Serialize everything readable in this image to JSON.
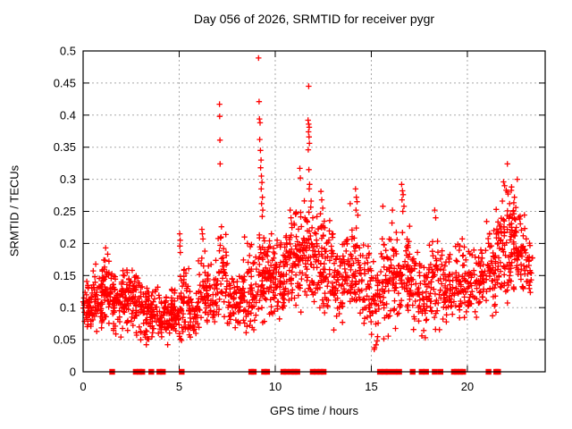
{
  "chart_data": {
    "type": "scatter",
    "title": "Day 056 of 2026, SRMTID for receiver pygr",
    "xlabel": "GPS time / hours",
    "ylabel": "SRMTID / TECUs",
    "xlim": [
      0,
      24.05
    ],
    "ylim": [
      0,
      0.5
    ],
    "xticks": [
      0,
      5,
      10,
      15,
      20
    ],
    "xtick_labels": [
      "0",
      "5",
      "10",
      "15",
      "20"
    ],
    "yticks": [
      0,
      0.05,
      0.1,
      0.15,
      0.2,
      0.25,
      0.3,
      0.35,
      0.4,
      0.45,
      0.5
    ],
    "ytick_labels": [
      "0",
      "0.05",
      "0.1",
      "0.15",
      "0.2",
      "0.25",
      "0.3",
      "0.35",
      "0.4",
      "0.45",
      "0.5"
    ],
    "grid": "dashed-major-both-axes",
    "legend": "none",
    "marker": "plus",
    "gap_marker": "filled-square",
    "colors": {
      "points": "#ff0000",
      "grid": "#a8a8a8",
      "axis": "#000000",
      "background": "#ffffff"
    },
    "seed": 20260056,
    "band_segments_comment": "dense scatter band; each row = [hourStart, hourEnd, count, yMin, yMax] in TECUs, triangular density toward middle",
    "band_segments": [
      [
        0.0,
        0.5,
        55,
        0.06,
        0.145
      ],
      [
        0.5,
        1.0,
        50,
        0.05,
        0.175
      ],
      [
        1.0,
        1.5,
        55,
        0.06,
        0.195
      ],
      [
        1.5,
        2.0,
        50,
        0.05,
        0.165
      ],
      [
        2.0,
        2.5,
        55,
        0.06,
        0.18
      ],
      [
        2.5,
        3.0,
        50,
        0.05,
        0.16
      ],
      [
        3.0,
        3.5,
        50,
        0.04,
        0.145
      ],
      [
        3.5,
        4.0,
        45,
        0.05,
        0.135
      ],
      [
        4.0,
        4.5,
        45,
        0.04,
        0.125
      ],
      [
        4.5,
        5.0,
        50,
        0.05,
        0.135
      ],
      [
        5.0,
        5.5,
        45,
        0.04,
        0.17
      ],
      [
        5.5,
        6.0,
        40,
        0.05,
        0.13
      ],
      [
        6.0,
        6.5,
        45,
        0.06,
        0.195
      ],
      [
        6.5,
        7.0,
        40,
        0.06,
        0.185
      ],
      [
        7.0,
        7.5,
        40,
        0.07,
        0.24
      ],
      [
        7.5,
        8.0,
        40,
        0.06,
        0.16
      ],
      [
        8.0,
        8.5,
        45,
        0.05,
        0.18
      ],
      [
        8.5,
        9.0,
        45,
        0.05,
        0.2
      ],
      [
        9.0,
        9.5,
        50,
        0.07,
        0.23
      ],
      [
        9.5,
        10.0,
        50,
        0.08,
        0.21
      ],
      [
        10.0,
        10.5,
        50,
        0.07,
        0.21
      ],
      [
        10.5,
        11.0,
        50,
        0.1,
        0.24
      ],
      [
        11.0,
        11.5,
        50,
        0.08,
        0.27
      ],
      [
        11.5,
        12.0,
        50,
        0.1,
        0.28
      ],
      [
        12.0,
        12.5,
        50,
        0.08,
        0.27
      ],
      [
        12.5,
        13.0,
        45,
        0.07,
        0.25
      ],
      [
        13.0,
        13.5,
        45,
        0.06,
        0.2
      ],
      [
        13.5,
        14.0,
        45,
        0.07,
        0.24
      ],
      [
        14.0,
        14.5,
        45,
        0.06,
        0.23
      ],
      [
        14.5,
        15.0,
        40,
        0.05,
        0.2
      ],
      [
        15.0,
        15.5,
        40,
        0.03,
        0.19
      ],
      [
        15.5,
        16.0,
        45,
        0.04,
        0.24
      ],
      [
        16.0,
        16.5,
        45,
        0.06,
        0.24
      ],
      [
        16.5,
        17.0,
        45,
        0.07,
        0.23
      ],
      [
        17.0,
        17.5,
        40,
        0.06,
        0.2
      ],
      [
        17.5,
        18.0,
        40,
        0.05,
        0.18
      ],
      [
        18.0,
        18.5,
        45,
        0.06,
        0.23
      ],
      [
        18.5,
        19.0,
        40,
        0.06,
        0.2
      ],
      [
        19.0,
        19.5,
        40,
        0.07,
        0.2
      ],
      [
        19.5,
        20.0,
        40,
        0.06,
        0.21
      ],
      [
        20.0,
        20.5,
        40,
        0.07,
        0.2
      ],
      [
        20.5,
        21.0,
        40,
        0.08,
        0.21
      ],
      [
        21.0,
        21.5,
        45,
        0.08,
        0.24
      ],
      [
        21.5,
        22.0,
        50,
        0.1,
        0.28
      ],
      [
        22.0,
        22.5,
        55,
        0.1,
        0.3
      ],
      [
        22.5,
        23.0,
        50,
        0.1,
        0.27
      ],
      [
        23.0,
        23.4,
        25,
        0.1,
        0.22
      ]
    ],
    "outlier_points_comment": "distinct high/spike points read from plot: [hour, TECUs]",
    "outlier_points": [
      [
        9.13,
        0.489
      ],
      [
        9.16,
        0.421
      ],
      [
        9.18,
        0.394
      ],
      [
        9.21,
        0.388
      ],
      [
        9.19,
        0.362
      ],
      [
        9.23,
        0.345
      ],
      [
        9.26,
        0.33
      ],
      [
        9.24,
        0.318
      ],
      [
        9.28,
        0.305
      ],
      [
        9.31,
        0.295
      ],
      [
        9.27,
        0.285
      ],
      [
        9.33,
        0.272
      ],
      [
        9.29,
        0.262
      ],
      [
        9.35,
        0.252
      ],
      [
        9.32,
        0.242
      ],
      [
        11.74,
        0.445
      ],
      [
        11.71,
        0.392
      ],
      [
        11.74,
        0.386
      ],
      [
        11.77,
        0.381
      ],
      [
        11.73,
        0.374
      ],
      [
        11.76,
        0.366
      ],
      [
        11.78,
        0.356
      ],
      [
        11.72,
        0.346
      ],
      [
        11.75,
        0.315
      ],
      [
        11.79,
        0.292
      ],
      [
        11.77,
        0.285
      ],
      [
        11.28,
        0.317
      ],
      [
        11.31,
        0.302
      ],
      [
        7.1,
        0.417
      ],
      [
        7.11,
        0.398
      ],
      [
        7.12,
        0.361
      ],
      [
        7.13,
        0.324
      ],
      [
        7.2,
        0.226
      ],
      [
        7.18,
        0.21
      ],
      [
        6.18,
        0.222
      ],
      [
        6.21,
        0.215
      ],
      [
        6.24,
        0.207
      ],
      [
        5.03,
        0.215
      ],
      [
        5.05,
        0.205
      ],
      [
        5.04,
        0.196
      ],
      [
        5.06,
        0.186
      ],
      [
        8.4,
        0.21
      ],
      [
        8.55,
        0.2
      ],
      [
        8.7,
        0.195
      ],
      [
        9.8,
        0.215
      ],
      [
        10.1,
        0.205
      ],
      [
        10.3,
        0.198
      ],
      [
        10.78,
        0.252
      ],
      [
        10.82,
        0.24
      ],
      [
        10.85,
        0.231
      ],
      [
        12.38,
        0.281
      ],
      [
        12.42,
        0.268
      ],
      [
        12.47,
        0.255
      ],
      [
        13.9,
        0.262
      ],
      [
        14.18,
        0.285
      ],
      [
        14.22,
        0.272
      ],
      [
        14.26,
        0.265
      ],
      [
        14.2,
        0.252
      ],
      [
        14.3,
        0.244
      ],
      [
        15.6,
        0.258
      ],
      [
        16.1,
        0.252
      ],
      [
        16.58,
        0.292
      ],
      [
        16.62,
        0.282
      ],
      [
        16.66,
        0.276
      ],
      [
        16.6,
        0.268
      ],
      [
        16.7,
        0.258
      ],
      [
        16.64,
        0.25
      ],
      [
        18.3,
        0.252
      ],
      [
        18.35,
        0.24
      ],
      [
        22.08,
        0.324
      ],
      [
        21.88,
        0.296
      ],
      [
        21.94,
        0.29
      ],
      [
        22.02,
        0.283
      ],
      [
        22.12,
        0.277
      ],
      [
        22.3,
        0.288
      ],
      [
        22.45,
        0.272
      ],
      [
        21.82,
        0.266
      ],
      [
        22.2,
        0.262
      ],
      [
        22.52,
        0.256
      ],
      [
        22.38,
        0.25
      ],
      [
        22.6,
        0.3
      ],
      [
        15.15,
        0.035
      ],
      [
        15.25,
        0.042
      ],
      [
        15.3,
        0.048
      ],
      [
        1.17,
        0.193
      ]
    ],
    "zero_gap_markers_hours": [
      1.51,
      2.74,
      2.93,
      3.08,
      3.55,
      3.97,
      4.15,
      5.13,
      8.75,
      8.88,
      9.42,
      9.58,
      10.42,
      10.58,
      10.82,
      11.0,
      11.15,
      11.95,
      12.15,
      12.35,
      12.52,
      15.45,
      15.7,
      15.9,
      16.2,
      16.45,
      17.15,
      17.62,
      17.85,
      18.3,
      18.6,
      19.3,
      19.45,
      19.62,
      19.78,
      21.1,
      21.5,
      21.6
    ]
  }
}
